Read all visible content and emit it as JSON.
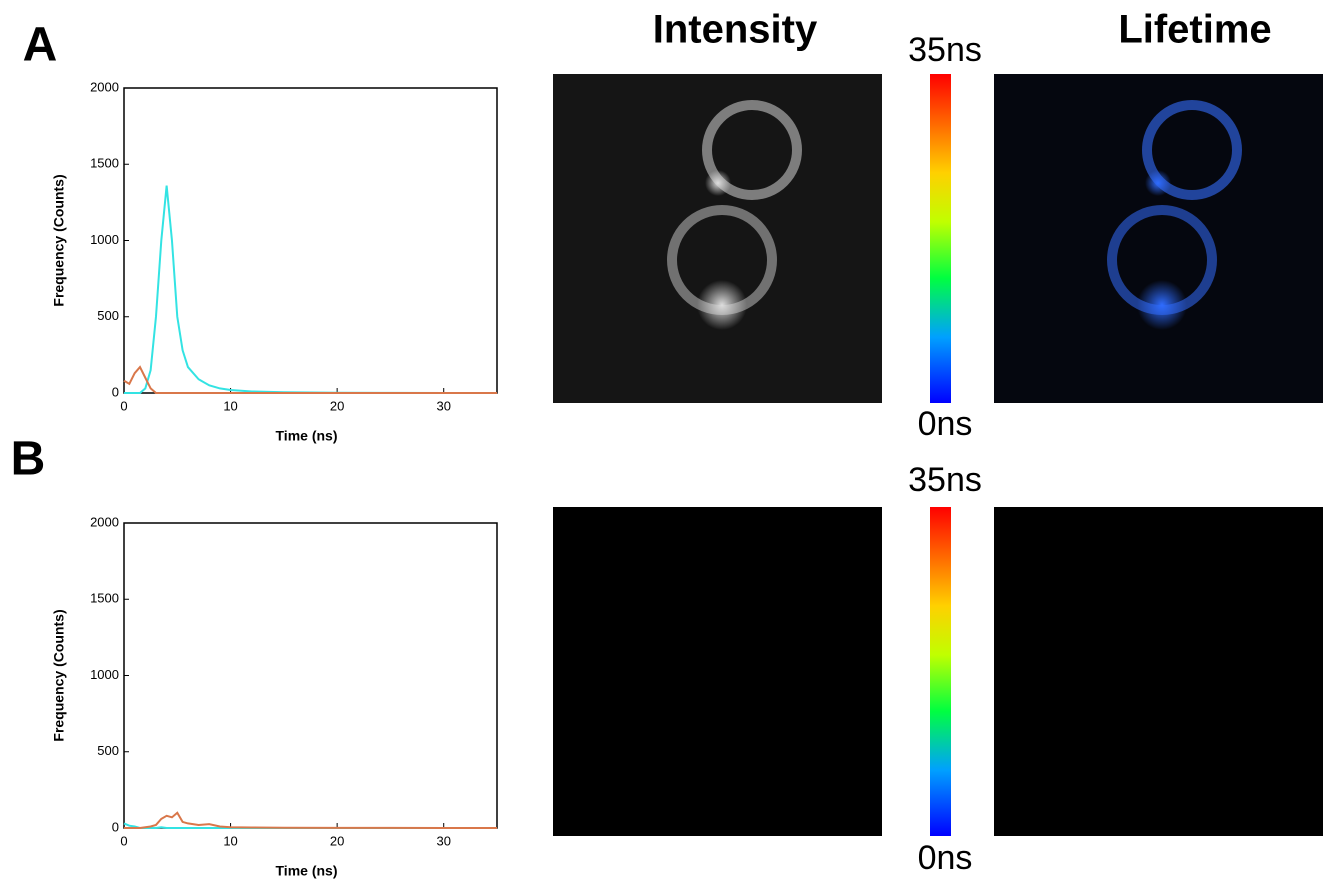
{
  "figure": {
    "panel_labels": [
      "A",
      "B"
    ],
    "column_titles": [
      "Intensity",
      "Lifetime"
    ],
    "colorbars": [
      {
        "max_label": "35ns",
        "min_label": "0ns"
      },
      {
        "max_label": "35ns",
        "min_label": "0ns"
      }
    ]
  },
  "chart_data": [
    {
      "type": "line",
      "xlabel": "Time (ns)",
      "ylabel": "Frequency (Counts)",
      "x": [
        0,
        0.5,
        1,
        1.5,
        2,
        2.5,
        3,
        3.5,
        4,
        4.5,
        5,
        5.5,
        6,
        7,
        8,
        9,
        10,
        12,
        15,
        20,
        25,
        30,
        35
      ],
      "series": [
        {
          "color": "#33e3e3",
          "values": [
            0,
            0,
            0,
            0,
            30,
            150,
            500,
            1000,
            1360,
            1000,
            500,
            280,
            170,
            90,
            50,
            30,
            20,
            10,
            5,
            2,
            1,
            0,
            0
          ]
        },
        {
          "color": "#d9774a",
          "values": [
            80,
            60,
            130,
            170,
            100,
            30,
            0,
            0,
            0,
            0,
            0,
            0,
            0,
            0,
            0,
            0,
            0,
            0,
            0,
            0,
            0,
            0,
            0
          ]
        }
      ],
      "xlim": [
        0,
        35
      ],
      "xticks": [
        0,
        10,
        20,
        30
      ],
      "ylim": [
        0,
        2000
      ],
      "yticks": [
        0,
        500,
        1000,
        1500,
        2000
      ]
    },
    {
      "type": "line",
      "xlabel": "Time (ns)",
      "ylabel": "Frequency (Counts)",
      "x": [
        0,
        0.5,
        1,
        1.5,
        2,
        2.5,
        3,
        3.5,
        4,
        4.5,
        5,
        5.5,
        6,
        7,
        8,
        9,
        10,
        12,
        15,
        20,
        25,
        30,
        35
      ],
      "series": [
        {
          "color": "#33e3e3",
          "values": [
            30,
            15,
            10,
            0,
            0,
            0,
            0,
            5,
            0,
            0,
            0,
            0,
            0,
            0,
            0,
            0,
            0,
            0,
            0,
            0,
            0,
            0,
            0
          ]
        },
        {
          "color": "#d9774a",
          "values": [
            0,
            0,
            0,
            0,
            5,
            10,
            20,
            60,
            80,
            70,
            100,
            40,
            30,
            20,
            25,
            10,
            5,
            3,
            2,
            1,
            1,
            0,
            0
          ]
        }
      ],
      "xlim": [
        0,
        35
      ],
      "xticks": [
        0,
        10,
        20,
        30
      ],
      "ylim": [
        0,
        2000
      ],
      "yticks": [
        0,
        500,
        1000,
        1500,
        2000
      ]
    }
  ]
}
